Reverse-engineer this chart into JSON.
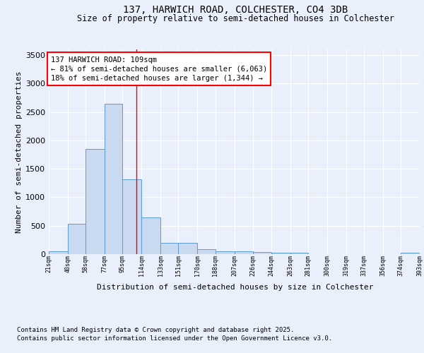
{
  "title_line1": "137, HARWICH ROAD, COLCHESTER, CO4 3DB",
  "title_line2": "Size of property relative to semi-detached houses in Colchester",
  "xlabel": "Distribution of semi-detached houses by size in Colchester",
  "ylabel": "Number of semi-detached properties",
  "bin_edges": [
    21,
    40,
    58,
    77,
    95,
    114,
    133,
    151,
    170,
    188,
    207,
    226,
    244,
    263,
    281,
    300,
    319,
    337,
    356,
    374,
    393
  ],
  "bar_heights": [
    50,
    530,
    1850,
    2650,
    1310,
    640,
    200,
    200,
    90,
    50,
    50,
    40,
    30,
    20,
    0,
    0,
    0,
    0,
    0,
    20
  ],
  "bar_color": "#c9d9f0",
  "bar_edge_color": "#5b9bd5",
  "red_line_x": 109,
  "annotation_box_text": "137 HARWICH ROAD: 109sqm\n← 81% of semi-detached houses are smaller (6,063)\n18% of semi-detached houses are larger (1,344) →",
  "ylim": [
    0,
    3600
  ],
  "yticks": [
    0,
    500,
    1000,
    1500,
    2000,
    2500,
    3000,
    3500
  ],
  "bg_color": "#eaf0fb",
  "plot_bg_color": "#eaf0fb",
  "grid_color": "#ffffff",
  "footnote_line1": "Contains HM Land Registry data © Crown copyright and database right 2025.",
  "footnote_line2": "Contains public sector information licensed under the Open Government Licence v3.0.",
  "tick_labels": [
    "21sqm",
    "40sqm",
    "58sqm",
    "77sqm",
    "95sqm",
    "114sqm",
    "133sqm",
    "151sqm",
    "170sqm",
    "188sqm",
    "207sqm",
    "226sqm",
    "244sqm",
    "263sqm",
    "281sqm",
    "300sqm",
    "319sqm",
    "337sqm",
    "356sqm",
    "374sqm",
    "393sqm"
  ]
}
